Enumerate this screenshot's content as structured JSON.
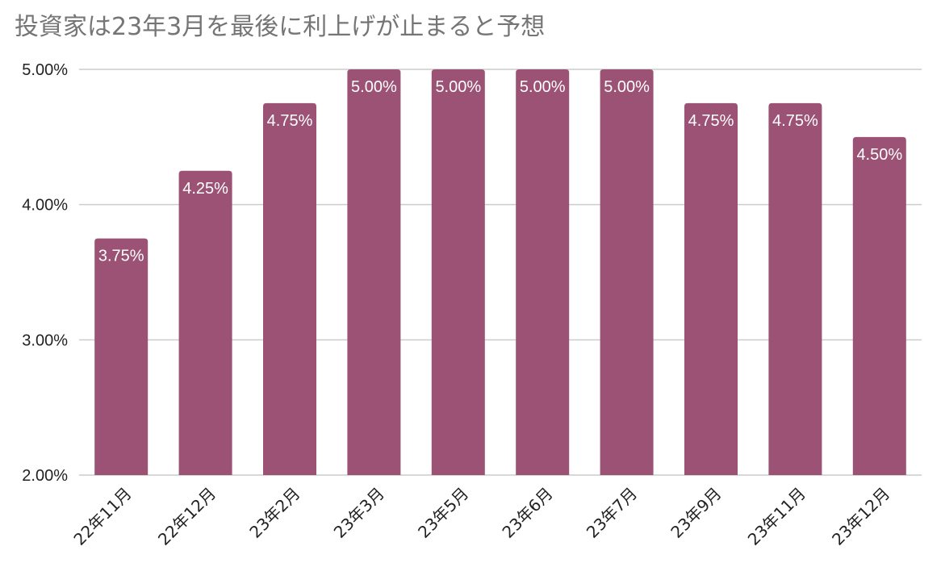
{
  "chart_data": {
    "type": "bar",
    "title": "投資家は23年3月を最後に利上げが止まると予想",
    "xlabel": "",
    "ylabel": "",
    "categories": [
      "22年11月",
      "22年12月",
      "23年2月",
      "23年3月",
      "23年5月",
      "23年6月",
      "23年7月",
      "23年9月",
      "23年11月",
      "23年12月"
    ],
    "values": [
      3.75,
      4.25,
      4.75,
      5.0,
      5.0,
      5.0,
      5.0,
      4.75,
      4.75,
      4.5
    ],
    "data_labels": [
      "3.75%",
      "4.25%",
      "4.75%",
      "5.00%",
      "5.00%",
      "5.00%",
      "5.00%",
      "4.75%",
      "4.75%",
      "4.50%"
    ],
    "ylim": [
      2.0,
      5.0
    ],
    "yticks": [
      2.0,
      3.0,
      4.0,
      5.0
    ],
    "ytick_labels": [
      "2.00%",
      "3.00%",
      "4.00%",
      "5.00%"
    ],
    "grid": true,
    "legend": "none",
    "colors": {
      "bar": "#9b5275",
      "grid": "#cccccc",
      "title": "#757575",
      "axis_text": "#222222",
      "data_label": "#ffffff"
    }
  }
}
